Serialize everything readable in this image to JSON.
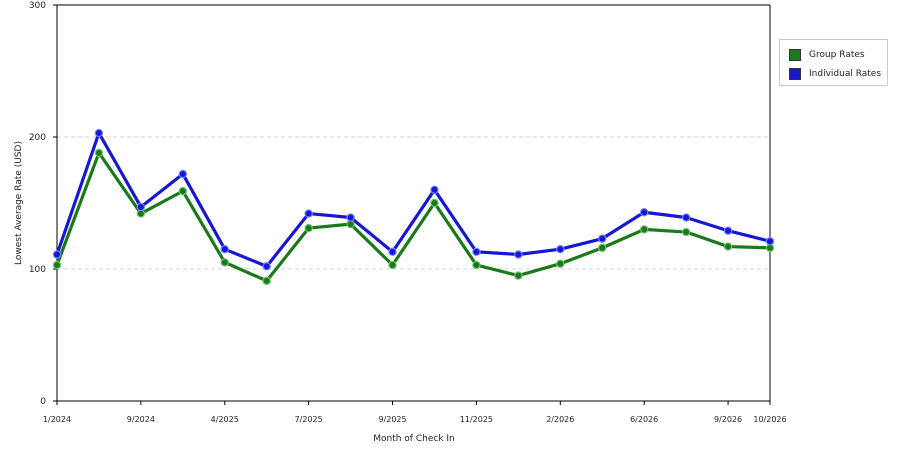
{
  "chart_data": {
    "type": "line",
    "title": "",
    "xlabel": "Month of Check In",
    "ylabel": "Lowest Average Rate (USD)",
    "ylim": [
      0,
      300
    ],
    "yticks": [
      0,
      100,
      200,
      300
    ],
    "grid": "horizontal dashed",
    "legend_position": "right",
    "x_tick_labels": [
      "1/2024",
      "9/2024",
      "4/2025",
      "7/2025",
      "9/2025",
      "11/2025",
      "2/2026",
      "6/2026",
      "9/2026",
      "10/2026"
    ],
    "x_tick_positions": [
      0,
      2,
      4,
      6,
      8,
      10,
      12,
      14,
      16,
      17
    ],
    "series": [
      {
        "name": "Group Rates",
        "color": "#1a7a1a",
        "values": [
          103,
          188,
          142,
          159,
          105,
          91,
          131,
          134,
          103,
          150,
          103,
          95,
          104,
          116,
          130,
          128,
          117,
          116
        ]
      },
      {
        "name": "Individual Rates",
        "color": "#1616d4",
        "values": [
          111,
          203,
          147,
          172,
          115,
          102,
          142,
          139,
          113,
          160,
          113,
          111,
          115,
          123,
          143,
          139,
          129,
          121
        ]
      }
    ]
  }
}
